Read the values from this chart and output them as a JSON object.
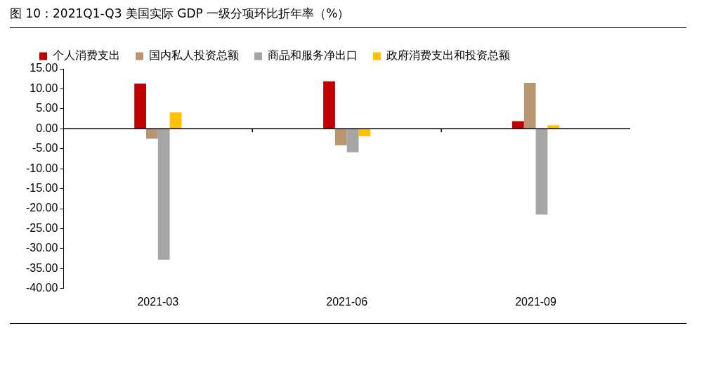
{
  "chart_data": {
    "type": "bar",
    "title": "图 10：2021Q1-Q3 美国实际 GDP 一级分项环比折年率（%）",
    "categories": [
      "2021-03",
      "2021-06",
      "2021-09"
    ],
    "series": [
      {
        "name": "个人消费支出",
        "color": "#c00000",
        "values": [
          11.3,
          11.9,
          1.9
        ]
      },
      {
        "name": "国内私人投资总额",
        "color": "#b99672",
        "values": [
          -2.5,
          -4.1,
          11.5
        ]
      },
      {
        "name": "商品和服务净出口",
        "color": "#a5a5a5",
        "values": [
          -32.8,
          -5.9,
          -21.5
        ]
      },
      {
        "name": "政府消费支出和投资总额",
        "color": "#ffc000",
        "values": [
          4.1,
          -1.9,
          0.9
        ]
      }
    ],
    "ylim": [
      -40,
      15
    ],
    "yticks": [
      {
        "value": -40,
        "label": "-40.00"
      },
      {
        "value": -35,
        "label": "-35.00"
      },
      {
        "value": -30,
        "label": "-30.00"
      },
      {
        "value": -25,
        "label": "-25.00"
      },
      {
        "value": -20,
        "label": "-20.00"
      },
      {
        "value": -15,
        "label": "-15.00"
      },
      {
        "value": -10,
        "label": "-10.00"
      },
      {
        "value": -5,
        "label": "-5.00"
      },
      {
        "value": 0,
        "label": "0.00"
      },
      {
        "value": 5,
        "label": "5.00"
      },
      {
        "value": 10,
        "label": "10.00"
      },
      {
        "value": 15,
        "label": "15.00"
      }
    ],
    "legend": "top"
  }
}
